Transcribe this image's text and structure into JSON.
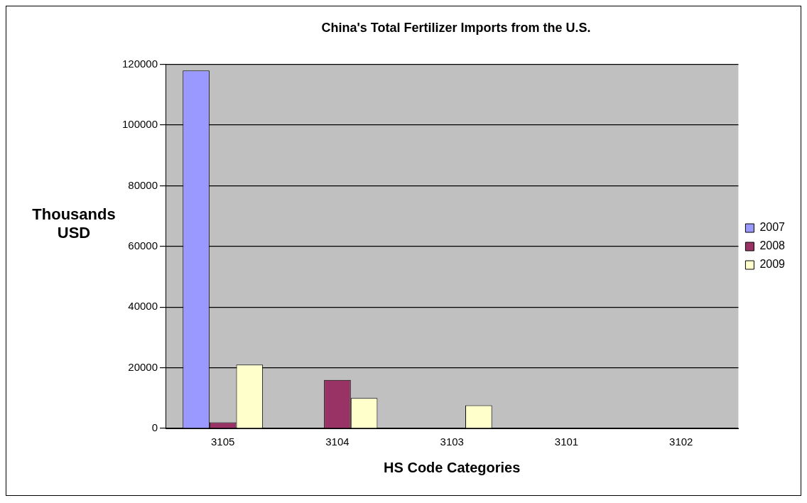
{
  "chart_data": {
    "type": "bar",
    "title": "China's Total Fertilizer Imports from the U.S.",
    "xlabel": "HS Code Categories",
    "ylabel": "Thousands USD",
    "categories": [
      "3105",
      "3104",
      "3103",
      "3101",
      "3102"
    ],
    "series": [
      {
        "name": "2007",
        "color": "#9999ff",
        "values": [
          118000,
          0,
          0,
          0,
          0
        ]
      },
      {
        "name": "2008",
        "color": "#993366",
        "values": [
          2000,
          16000,
          0,
          0,
          0
        ]
      },
      {
        "name": "2009",
        "color": "#ffffcc",
        "values": [
          21000,
          10000,
          7600,
          0,
          0
        ]
      }
    ],
    "ylim": [
      0,
      120000
    ],
    "yticks": [
      0,
      20000,
      40000,
      60000,
      80000,
      100000,
      120000
    ],
    "grid": "y",
    "legend": "right"
  }
}
